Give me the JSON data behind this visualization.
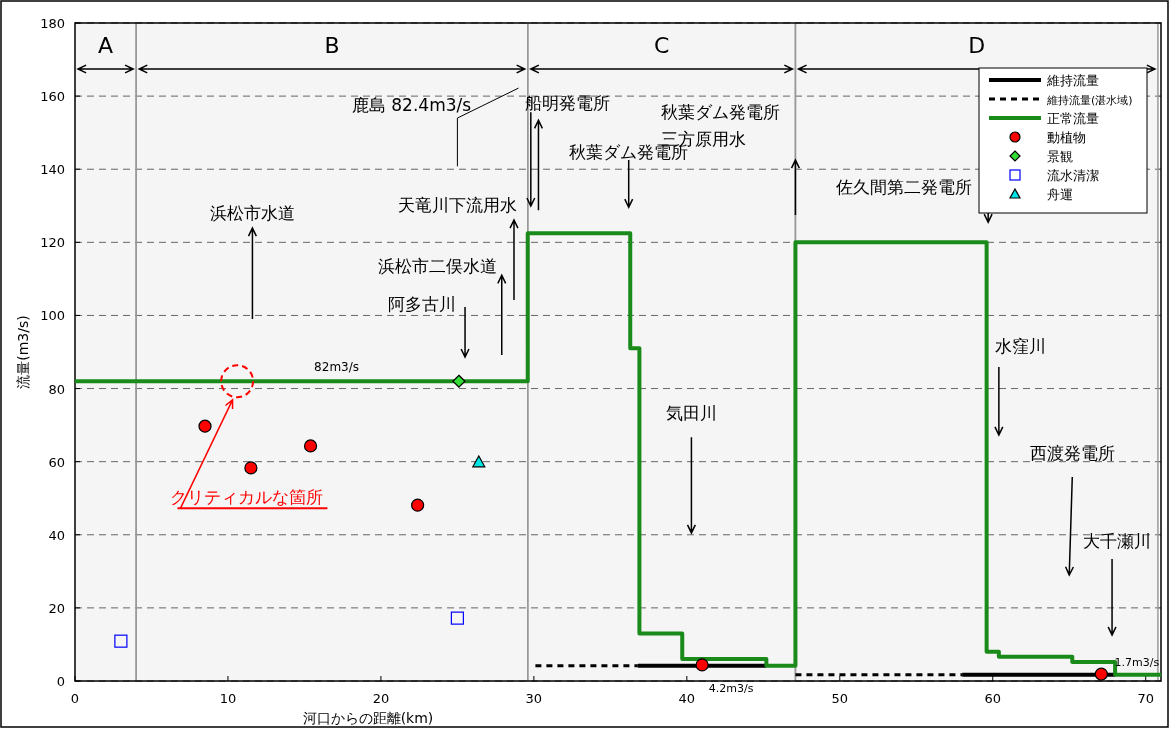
{
  "chart_data": {
    "type": "line",
    "xlabel": "河口からの距離(km)",
    "ylabel": "流量(m3/s)",
    "xlim": [
      0,
      71
    ],
    "xticks": [
      0,
      10,
      20,
      30,
      40,
      50,
      60,
      70
    ],
    "ylim": [
      0,
      180
    ],
    "yticks": [
      0,
      20,
      40,
      60,
      80,
      100,
      120,
      140,
      160,
      180
    ],
    "grid": "y",
    "legend": "top right",
    "series": [
      {
        "name": "維持流量",
        "color": "#000000",
        "line_style": "solid",
        "x": [
          36.8,
          45.2,
          50,
          58,
          68
        ],
        "values": [
          4.2,
          4.2,
          null,
          1.7,
          1.7
        ]
      },
      {
        "name": "維持流量(湛水域)",
        "color": "#000000",
        "line_style": "dashed",
        "x": [
          30.1,
          36.8,
          40,
          47.1,
          58
        ],
        "values": [
          4.2,
          4.2,
          null,
          1.7,
          1.7
        ]
      },
      {
        "name": "正常流量",
        "type": "step",
        "color": "#1a8a1a",
        "line_style": "solid",
        "x": [
          0,
          29.6,
          36.3,
          36.9,
          39.7,
          45.2,
          47.1,
          59.6,
          60.4,
          65.2,
          68,
          71
        ],
        "values": [
          82,
          122.5,
          91,
          13,
          6,
          4.2,
          120,
          8,
          6.6,
          5.2,
          1.7,
          1.7
        ]
      },
      {
        "name": "動植物",
        "type": "scatter",
        "color": "#ff0000",
        "marker": "circle",
        "x": [
          8.5,
          11.5,
          15.4,
          22.4,
          41,
          67.1
        ],
        "values": [
          69.7,
          58.3,
          64.3,
          48.1,
          4.4,
          1.9
        ]
      },
      {
        "name": "景観",
        "type": "scatter",
        "color": "#33dd33",
        "marker": "diamond",
        "x": [
          25.1
        ],
        "values": [
          82
        ]
      },
      {
        "name": "流水清潔",
        "type": "scatter",
        "color": "#0000ff",
        "marker": "square",
        "x": [
          3,
          25
        ],
        "values": [
          10.9,
          17.2
        ]
      },
      {
        "name": "舟運",
        "type": "scatter",
        "color": "#00e5e5",
        "marker": "triangle",
        "x": [
          26.4
        ],
        "values": [
          59.9
        ]
      }
    ],
    "bands": [
      {
        "axis": "x",
        "from": 0,
        "to": 4,
        "label": "A",
        "color": "#f5f5f5"
      },
      {
        "axis": "x",
        "from": 4,
        "to": 29.6,
        "label": "B",
        "color": "#f5f5f5"
      },
      {
        "axis": "x",
        "from": 29.6,
        "to": 47.1,
        "label": "C",
        "color": "#f5f5f5"
      },
      {
        "axis": "x",
        "from": 47.1,
        "to": 70.8,
        "label": "D",
        "color": "#f5f5f5"
      }
    ],
    "annotations": [
      "鹿島 82.4m3/s",
      {
        "text": "船明発電所",
        "x": 29.8,
        "y": 129.9
      },
      "秋葉ダム発電所",
      "秋葉ダム発電所",
      "三方原用水",
      "浜松市水道",
      "天竜川下流用水",
      "浜松市二俣水道",
      "阿多古川",
      {
        "text": "82m3/s",
        "x": 17.1,
        "y": 82
      },
      "クリティカルな箇所",
      "気田川",
      "佐久間第二発電所",
      "水窪川",
      "西渡発電所",
      "大千瀬川",
      {
        "text": "4.2m3/s",
        "x": 42.9,
        "y": 4.2
      },
      {
        "text": "1.7m3/s",
        "x": 68.9,
        "y": 1.7
      }
    ]
  }
}
